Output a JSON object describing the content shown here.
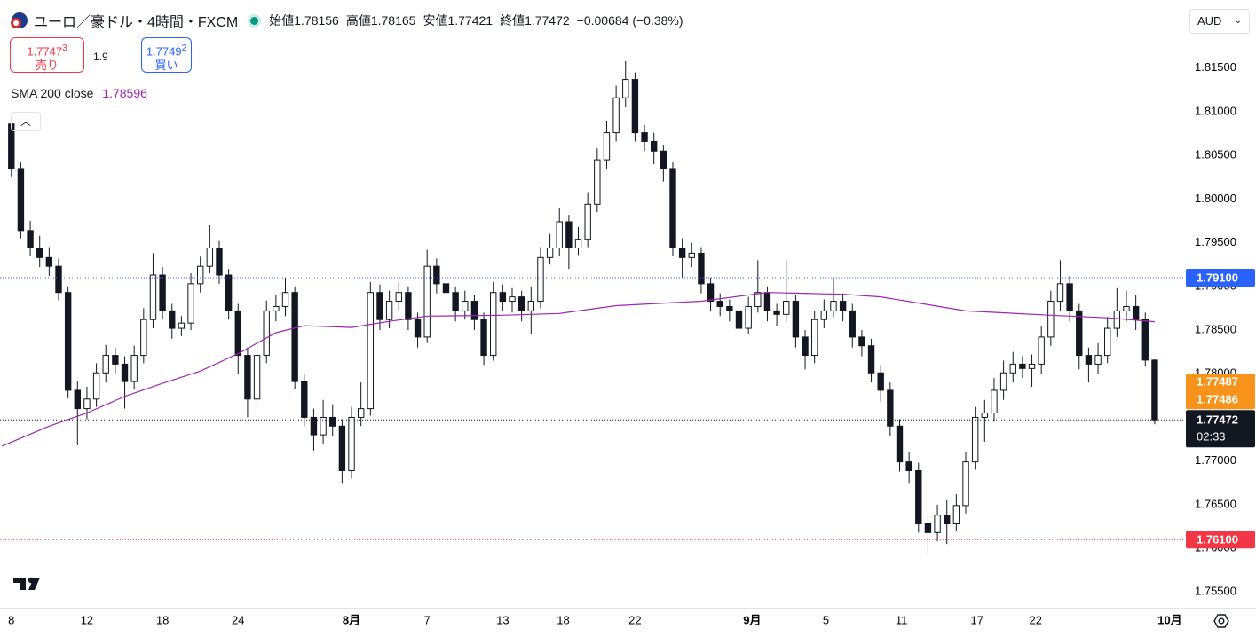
{
  "header": {
    "symbol_title": "ユーロ／豪ドル・4時間・FXCM",
    "ohlc_labels": [
      "始値",
      "高値",
      "安値",
      "終値"
    ],
    "change": "−0.00684 (−0.38%)"
  },
  "trade": {
    "sell_main": "1.7747",
    "sell_sup": "3",
    "sell_label": "売り",
    "spread": "1.9",
    "buy_main": "1.7749",
    "buy_sup": "2",
    "buy_label": "買い"
  },
  "currency": "AUD",
  "chart_data": {
    "type": "candlestick",
    "up_color": "#ffffff",
    "down_color": "#131722",
    "wick_color": "#131722",
    "xlim": [
      -0.6,
      62.1
    ],
    "ylim": [
      1.7532,
      1.8228
    ],
    "grid": false,
    "xticks": [
      {
        "value": 0,
        "label": "8"
      },
      {
        "value": 4,
        "label": "12"
      },
      {
        "value": 8,
        "label": "18"
      },
      {
        "value": 12,
        "label": "24"
      },
      {
        "value": 18,
        "label": "8月",
        "major": true
      },
      {
        "value": 22,
        "label": "7"
      },
      {
        "value": 26,
        "label": "13"
      },
      {
        "value": 29.2,
        "label": "18"
      },
      {
        "value": 33,
        "label": "22"
      },
      {
        "value": 39.2,
        "label": "9月",
        "major": true
      },
      {
        "value": 43.1,
        "label": "5"
      },
      {
        "value": 47.1,
        "label": "11"
      },
      {
        "value": 51.1,
        "label": "17"
      },
      {
        "value": 54.2,
        "label": "22"
      },
      {
        "value": 61.3,
        "label": "10月",
        "major": true
      }
    ],
    "yticks": [
      {
        "value": 1.755,
        "label": "1.75500"
      },
      {
        "value": 1.76,
        "label": "1.76000"
      },
      {
        "value": 1.765,
        "label": "1.76500"
      },
      {
        "value": 1.77,
        "label": "1.77000"
      },
      {
        "value": 1.775,
        "label": "1.77500"
      },
      {
        "value": 1.78,
        "label": "1.78000"
      },
      {
        "value": 1.785,
        "label": "1.78500"
      },
      {
        "value": 1.79,
        "label": "1.79000"
      },
      {
        "value": 1.795,
        "label": "1.79500"
      },
      {
        "value": 1.8,
        "label": "1.80000"
      },
      {
        "value": 1.805,
        "label": "1.80500"
      },
      {
        "value": 1.81,
        "label": "1.81000"
      },
      {
        "value": 1.815,
        "label": "1.81500"
      }
    ],
    "x": [
      0,
      0.5,
      1,
      1.5,
      2,
      2.5,
      3,
      3.5,
      4,
      4.5,
      5,
      5.5,
      6,
      6.5,
      7,
      7.5,
      8,
      8.5,
      9,
      9.5,
      10,
      10.5,
      11,
      11.5,
      12,
      12.5,
      13,
      13.5,
      14,
      14.5,
      15,
      15.5,
      16,
      16.5,
      17,
      17.5,
      18,
      18.5,
      19,
      19.5,
      20,
      20.5,
      21,
      21.5,
      22,
      22.5,
      23,
      23.5,
      24,
      24.5,
      25,
      25.5,
      26,
      26.5,
      27,
      27.5,
      28,
      28.5,
      29,
      29.5,
      30,
      30.5,
      31,
      31.5,
      32,
      32.5,
      33,
      33.5,
      34,
      34.5,
      35,
      35.5,
      36,
      36.5,
      37,
      37.5,
      38,
      38.5,
      39,
      39.5,
      40,
      40.5,
      41,
      41.5,
      42,
      42.5,
      43,
      43.5,
      44,
      44.5,
      45,
      45.5,
      46,
      46.5,
      47,
      47.5,
      48,
      48.5,
      49,
      49.5,
      50,
      50.5,
      51,
      51.5,
      52,
      52.5,
      53,
      53.5,
      54,
      54.5,
      55,
      55.5,
      56,
      56.5,
      57,
      57.5,
      58,
      58.5,
      59,
      59.5,
      60,
      60.5
    ],
    "open": [
      1.8086,
      1.8035,
      1.7964,
      1.7944,
      1.7933,
      1.7923,
      1.7893,
      1.7781,
      1.776,
      1.7771,
      1.7801,
      1.7821,
      1.7811,
      1.7791,
      1.7821,
      1.7862,
      1.7913,
      1.7872,
      1.7852,
      1.7858,
      1.7903,
      1.7923,
      1.7944,
      1.7913,
      1.7872,
      1.7821,
      1.7771,
      1.7821,
      1.7872,
      1.7877,
      1.7893,
      1.7791,
      1.775,
      1.773,
      1.775,
      1.774,
      1.7689,
      1.775,
      1.776,
      1.7893,
      1.7862,
      1.7883,
      1.7893,
      1.7862,
      1.7842,
      1.7923,
      1.7903,
      1.7893,
      1.7872,
      1.7883,
      1.7862,
      1.7821,
      1.7893,
      1.7883,
      1.7888,
      1.7872,
      1.7883,
      1.7933,
      1.7944,
      1.7974,
      1.7944,
      1.7954,
      1.7994,
      1.8045,
      1.8076,
      1.8116,
      1.8137,
      1.8076,
      1.8066,
      1.8055,
      1.8035,
      1.7944,
      1.7933,
      1.7938,
      1.7903,
      1.7883,
      1.7877,
      1.7872,
      1.7852,
      1.7877,
      1.7893,
      1.7872,
      1.7868,
      1.7883,
      1.7842,
      1.7821,
      1.7862,
      1.7872,
      1.7883,
      1.7872,
      1.7842,
      1.7832,
      1.7801,
      1.7781,
      1.774,
      1.7699,
      1.7689,
      1.7628,
      1.7618,
      1.7638,
      1.7628,
      1.7649,
      1.7699,
      1.775,
      1.7755,
      1.7781,
      1.7801,
      1.7811,
      1.7806,
      1.7811,
      1.7842,
      1.7883,
      1.7903,
      1.7872,
      1.7821,
      1.7811,
      1.7821,
      1.7852,
      1.7872,
      1.7877,
      1.7862,
      1.78156
    ],
    "high": [
      1.8095,
      1.8042,
      1.7975,
      1.7958,
      1.7945,
      1.7932,
      1.79,
      1.7792,
      1.7785,
      1.7812,
      1.7833,
      1.783,
      1.782,
      1.7832,
      1.7875,
      1.7938,
      1.7922,
      1.788,
      1.7866,
      1.7915,
      1.7934,
      1.797,
      1.7952,
      1.792,
      1.788,
      1.783,
      1.7832,
      1.7884,
      1.789,
      1.791,
      1.79,
      1.78,
      1.776,
      1.777,
      1.7765,
      1.7748,
      1.7762,
      1.779,
      1.7905,
      1.7902,
      1.7895,
      1.7905,
      1.79,
      1.787,
      1.7942,
      1.7932,
      1.7912,
      1.79,
      1.7895,
      1.789,
      1.787,
      1.7905,
      1.7902,
      1.7898,
      1.7895,
      1.79,
      1.7945,
      1.796,
      1.799,
      1.7982,
      1.7968,
      1.8008,
      1.8058,
      1.809,
      1.813,
      1.8158,
      1.8145,
      1.8085,
      1.8076,
      1.8062,
      1.8042,
      1.7955,
      1.795,
      1.7945,
      1.791,
      1.7892,
      1.7885,
      1.788,
      1.7888,
      1.793,
      1.79,
      1.788,
      1.793,
      1.789,
      1.785,
      1.7872,
      1.7885,
      1.791,
      1.7892,
      1.788,
      1.785,
      1.784,
      1.781,
      1.779,
      1.7748,
      1.771,
      1.7698,
      1.7638,
      1.765,
      1.7655,
      1.7662,
      1.771,
      1.7762,
      1.777,
      1.7795,
      1.7815,
      1.7825,
      1.782,
      1.7822,
      1.7855,
      1.7895,
      1.793,
      1.7912,
      1.788,
      1.783,
      1.7835,
      1.7865,
      1.7898,
      1.7895,
      1.789,
      1.787,
      1.78165
    ],
    "low": [
      1.8026,
      1.7955,
      1.7935,
      1.7922,
      1.7912,
      1.7884,
      1.7772,
      1.7718,
      1.7748,
      1.7762,
      1.779,
      1.78,
      1.776,
      1.7782,
      1.7812,
      1.7852,
      1.7862,
      1.784,
      1.7843,
      1.785,
      1.7893,
      1.7915,
      1.7903,
      1.7862,
      1.78,
      1.775,
      1.7762,
      1.7812,
      1.786,
      1.7866,
      1.7782,
      1.774,
      1.7712,
      1.772,
      1.7728,
      1.7675,
      1.768,
      1.774,
      1.7752,
      1.785,
      1.7852,
      1.7872,
      1.785,
      1.783,
      1.7835,
      1.7892,
      1.788,
      1.786,
      1.7862,
      1.785,
      1.781,
      1.7815,
      1.7872,
      1.787,
      1.786,
      1.7845,
      1.7875,
      1.7925,
      1.7935,
      1.792,
      1.7936,
      1.7945,
      1.7985,
      1.8035,
      1.8066,
      1.8105,
      1.8066,
      1.8055,
      1.804,
      1.802,
      1.7935,
      1.791,
      1.7922,
      1.7892,
      1.7872,
      1.7866,
      1.786,
      1.7825,
      1.7845,
      1.787,
      1.786,
      1.7855,
      1.786,
      1.783,
      1.7805,
      1.7812,
      1.7852,
      1.7865,
      1.786,
      1.783,
      1.782,
      1.779,
      1.7768,
      1.7728,
      1.7688,
      1.7675,
      1.7618,
      1.7595,
      1.7608,
      1.7605,
      1.762,
      1.764,
      1.769,
      1.7722,
      1.7745,
      1.777,
      1.779,
      1.7795,
      1.7785,
      1.78,
      1.7832,
      1.7872,
      1.786,
      1.7805,
      1.779,
      1.78,
      1.7812,
      1.7842,
      1.786,
      1.785,
      1.7808,
      1.77421
    ],
    "close": [
      1.8035,
      1.7964,
      1.7944,
      1.7933,
      1.7923,
      1.7893,
      1.7781,
      1.776,
      1.7771,
      1.7801,
      1.7821,
      1.7811,
      1.7791,
      1.7821,
      1.7862,
      1.7913,
      1.7872,
      1.7852,
      1.7858,
      1.7903,
      1.7923,
      1.7944,
      1.7913,
      1.7872,
      1.7821,
      1.7771,
      1.7821,
      1.7872,
      1.7877,
      1.7893,
      1.7791,
      1.775,
      1.773,
      1.775,
      1.774,
      1.7689,
      1.775,
      1.776,
      1.7893,
      1.7862,
      1.7883,
      1.7893,
      1.7862,
      1.7842,
      1.7923,
      1.7903,
      1.7893,
      1.7872,
      1.7883,
      1.7862,
      1.7821,
      1.7893,
      1.7883,
      1.7888,
      1.7872,
      1.7883,
      1.7933,
      1.7944,
      1.7974,
      1.7944,
      1.7954,
      1.7994,
      1.8045,
      1.8076,
      1.8116,
      1.8137,
      1.8076,
      1.8066,
      1.8055,
      1.8035,
      1.7944,
      1.7933,
      1.7938,
      1.7903,
      1.7883,
      1.7877,
      1.7872,
      1.7852,
      1.7877,
      1.7893,
      1.7872,
      1.7868,
      1.7883,
      1.7842,
      1.7821,
      1.7862,
      1.7872,
      1.7883,
      1.7872,
      1.7842,
      1.7832,
      1.7801,
      1.7781,
      1.774,
      1.7699,
      1.7689,
      1.7628,
      1.7618,
      1.7638,
      1.7628,
      1.7649,
      1.7699,
      1.775,
      1.7755,
      1.7781,
      1.7801,
      1.7811,
      1.7806,
      1.7811,
      1.7842,
      1.7883,
      1.7903,
      1.7872,
      1.7821,
      1.7811,
      1.7821,
      1.7852,
      1.7872,
      1.7877,
      1.7862,
      1.78156,
      1.77472
    ],
    "sma": {
      "name": "SMA 200 close",
      "color": "#9c27b0",
      "x": [
        -0.5,
        2,
        4,
        6,
        8,
        10,
        12,
        14,
        15.5,
        18,
        20,
        22,
        26,
        29,
        32,
        36.5,
        40,
        44,
        46,
        50.5,
        55,
        58,
        60.5
      ],
      "values": [
        1.7717,
        1.774,
        1.7755,
        1.7774,
        1.7789,
        1.7803,
        1.7823,
        1.7847,
        1.7855,
        1.7853,
        1.786,
        1.7866,
        1.7867,
        1.7869,
        1.7878,
        1.7883,
        1.7893,
        1.7891,
        1.7888,
        1.7872,
        1.7867,
        1.7864,
        1.78596
      ]
    },
    "price_lines": [
      {
        "value": 1.791,
        "label": "1.79100",
        "color": "#2962ff"
      },
      {
        "value": 1.761,
        "label": "1.76100",
        "color": "#f23645"
      }
    ],
    "current_price": {
      "countdown": "02:33",
      "color": "#131722"
    },
    "quote_markers": {
      "values": [
        1.77487,
        1.77486
      ],
      "color": "#f7931a"
    }
  }
}
